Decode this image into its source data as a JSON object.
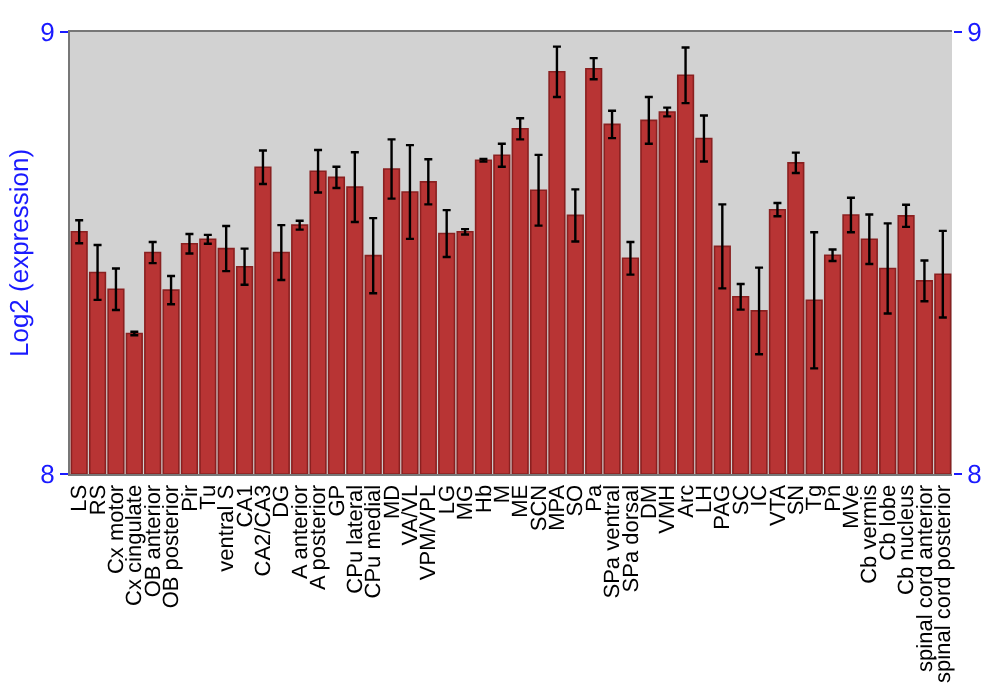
{
  "chart_data": {
    "type": "bar",
    "ylabel": "Log2 (expression)",
    "categories": [
      "LS",
      "RS",
      "Cx motor",
      "Cx cingulate",
      "OB anterior",
      "OB posterior",
      "Pir",
      "Tu",
      "ventral S",
      "CA1",
      "CA2/CA3",
      "DG",
      "A anterior",
      "A posterior",
      "GP",
      "CPu lateral",
      "CPu medial",
      "MD",
      "VA/VL",
      "VPM/VPL",
      "LG",
      "MG",
      "Hb",
      "M",
      "ME",
      "SCN",
      "MPA",
      "SO",
      "Pa",
      "SPa ventral",
      "SPa dorsal",
      "DM",
      "VMH",
      "Arc",
      "LH",
      "PAG",
      "SC",
      "IC",
      "VTA",
      "SN",
      "Tg",
      "Pn",
      "MVe",
      "Cb vermis",
      "Cb lobe",
      "Cb nucleus",
      "spinal cord anterior",
      "spinal cord posterior"
    ],
    "values": [
      8.548,
      8.456,
      8.418,
      8.318,
      8.501,
      8.416,
      8.521,
      8.531,
      8.51,
      8.469,
      8.694,
      8.501,
      8.563,
      8.685,
      8.671,
      8.649,
      8.494,
      8.69,
      8.638,
      8.661,
      8.544,
      8.548,
      8.71,
      8.721,
      8.781,
      8.642,
      8.91,
      8.585,
      8.917,
      8.791,
      8.488,
      8.8,
      8.819,
      8.902,
      8.759,
      8.515,
      8.401,
      8.369,
      8.598,
      8.704,
      8.393,
      8.495,
      8.586,
      8.531,
      8.465,
      8.584,
      8.437,
      8.452
    ],
    "errors": [
      0.026,
      0.062,
      0.047,
      0.004,
      0.024,
      0.032,
      0.022,
      0.01,
      0.051,
      0.041,
      0.038,
      0.062,
      0.01,
      0.048,
      0.024,
      0.079,
      0.085,
      0.067,
      0.106,
      0.051,
      0.053,
      0.006,
      0.003,
      0.026,
      0.024,
      0.08,
      0.057,
      0.059,
      0.024,
      0.031,
      0.037,
      0.053,
      0.01,
      0.063,
      0.052,
      0.095,
      0.029,
      0.098,
      0.015,
      0.023,
      0.154,
      0.013,
      0.039,
      0.056,
      0.102,
      0.025,
      0.046,
      0.098
    ],
    "color": "#b83434",
    "ylim": [
      8,
      9
    ],
    "yticks": [
      8,
      9
    ],
    "y2lim": [
      8,
      9
    ],
    "y2ticks": [
      8,
      9
    ],
    "grid": false,
    "legend": false
  }
}
